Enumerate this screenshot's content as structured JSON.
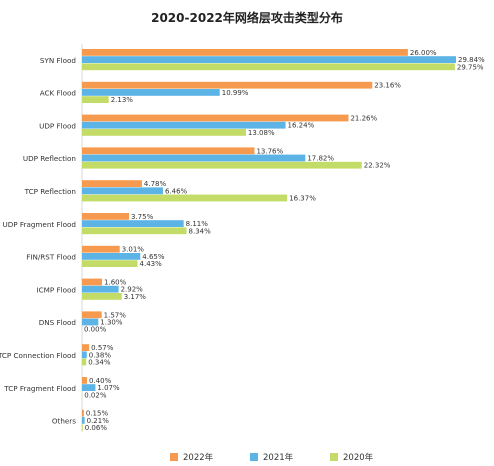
{
  "chart_data": {
    "type": "bar",
    "orientation": "horizontal",
    "title": "2020-2022年网络层攻击类型分布",
    "categories": [
      "SYN Flood",
      "ACK Flood",
      "UDP Flood",
      "UDP Reflection",
      "TCP Reflection",
      "UDP Fragment Flood",
      "FIN/RST Flood",
      "ICMP Flood",
      "DNS Flood",
      "TCP Connection Flood",
      "TCP Fragment Flood",
      "Others"
    ],
    "series": [
      {
        "name": "2022年",
        "color": "#F59A4E",
        "values": [
          26.0,
          23.16,
          21.26,
          13.76,
          4.78,
          3.75,
          3.01,
          1.6,
          1.57,
          0.57,
          0.4,
          0.15
        ],
        "labels": [
          "26.00%",
          "23.16%",
          "21.26%",
          "13.76%",
          "4.78%",
          "3.75%",
          "3.01%",
          "1.60%",
          "1.57%",
          "0.57%",
          "0.40%",
          "0.15%"
        ]
      },
      {
        "name": "2021年",
        "color": "#5BB4E5",
        "values": [
          29.84,
          10.99,
          16.24,
          17.82,
          6.46,
          8.11,
          4.65,
          2.92,
          1.3,
          0.38,
          1.07,
          0.21
        ],
        "labels": [
          "29.84%",
          "10.99%",
          "16.24%",
          "17.82%",
          "6.46%",
          "8.11%",
          "4.65%",
          "2.92%",
          "1.30%",
          "0.38%",
          "1.07%",
          "0.21%"
        ]
      },
      {
        "name": "2020年",
        "color": "#C3DC68",
        "values": [
          29.75,
          2.13,
          13.08,
          22.32,
          16.37,
          8.34,
          4.43,
          3.17,
          0.0,
          0.34,
          0.02,
          0.06
        ],
        "labels": [
          "29.75%",
          "2.13%",
          "13.08%",
          "22.32%",
          "16.37%",
          "8.34%",
          "4.43%",
          "3.17%",
          "0.00%",
          "0.34%",
          "0.02%",
          "0.06%"
        ]
      }
    ],
    "xlim": [
      0,
      30
    ],
    "unit": "%",
    "legend_position": "bottom",
    "grid": false
  }
}
